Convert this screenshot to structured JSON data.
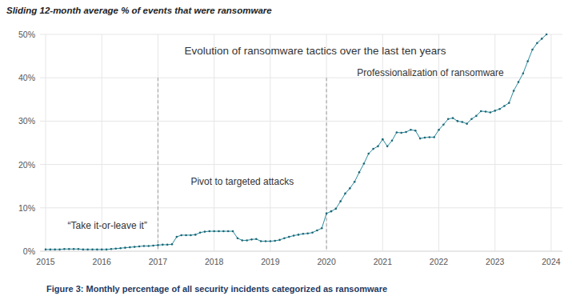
{
  "chart_data": {
    "type": "line",
    "title": "Sliding 12-month average % of events that were ransomware",
    "caption": "Figure 3: Monthly percentage of all security incidents categorized as ransomware",
    "color": "#2b8c9e",
    "marker": "circle",
    "line_style": "solid",
    "grid": true,
    "xlim": [
      2014.9,
      2024.2
    ],
    "xticks": [
      2015,
      2016,
      2017,
      2018,
      2019,
      2020,
      2021,
      2022,
      2023,
      2024
    ],
    "ylim": [
      0,
      50
    ],
    "yticks": [
      {
        "value": 0,
        "label": "0%"
      },
      {
        "value": 10,
        "label": "10%"
      },
      {
        "value": 20,
        "label": "20%"
      },
      {
        "value": 30,
        "label": "30%"
      },
      {
        "value": 40,
        "label": "40%"
      },
      {
        "value": 50,
        "label": "50%"
      }
    ],
    "vlines": [
      {
        "x": 2017,
        "y": 40
      },
      {
        "x": 2020,
        "y": 40
      }
    ],
    "annotations": [
      {
        "text": "Evolution of ransomware tactics over the last ten years",
        "x": 2019.8,
        "y": 45.4
      },
      {
        "text": "“Take it-or-leave it”",
        "x": 2016.1,
        "y": 5.2
      },
      {
        "text": "Pivot to targeted attacks",
        "x": 2018.5,
        "y": 15.3
      },
      {
        "text": "Professionalization of ransomware",
        "x": 2021.85,
        "y": 40.4
      }
    ],
    "x": [
      2015,
      2015.0833,
      2015.1667,
      2015.25,
      2015.3333,
      2015.4167,
      2015.5,
      2015.5833,
      2015.6667,
      2015.75,
      2015.8333,
      2015.9167,
      2016,
      2016.0833,
      2016.1667,
      2016.25,
      2016.3333,
      2016.4167,
      2016.5,
      2016.5833,
      2016.6667,
      2016.75,
      2016.8333,
      2016.9167,
      2017,
      2017.0833,
      2017.1667,
      2017.25,
      2017.3333,
      2017.4167,
      2017.5,
      2017.5833,
      2017.6667,
      2017.75,
      2017.8333,
      2017.9167,
      2018,
      2018.0833,
      2018.1667,
      2018.25,
      2018.3333,
      2018.4167,
      2018.5,
      2018.5833,
      2018.6667,
      2018.75,
      2018.8333,
      2018.9167,
      2019,
      2019.0833,
      2019.1667,
      2019.25,
      2019.3333,
      2019.4167,
      2019.5,
      2019.5833,
      2019.6667,
      2019.75,
      2019.8333,
      2019.9167,
      2020,
      2020.0833,
      2020.1667,
      2020.25,
      2020.3333,
      2020.4167,
      2020.5,
      2020.5833,
      2020.6667,
      2020.75,
      2020.8333,
      2020.9167,
      2021,
      2021.0833,
      2021.1667,
      2021.25,
      2021.3333,
      2021.4167,
      2021.5,
      2021.5833,
      2021.6667,
      2021.75,
      2021.8333,
      2021.9167,
      2022,
      2022.0833,
      2022.1667,
      2022.25,
      2022.3333,
      2022.4167,
      2022.5,
      2022.5833,
      2022.6667,
      2022.75,
      2022.8333,
      2022.9167,
      2023,
      2023.0833,
      2023.1667,
      2023.25,
      2023.3333,
      2023.4167,
      2023.5,
      2023.5833,
      2023.6667,
      2023.75,
      2023.8333,
      2023.9167
    ],
    "values": [
      0.4,
      0.4,
      0.4,
      0.4,
      0.5,
      0.5,
      0.5,
      0.5,
      0.4,
      0.4,
      0.4,
      0.4,
      0.4,
      0.4,
      0.5,
      0.6,
      0.7,
      0.8,
      0.9,
      1.0,
      1.1,
      1.2,
      1.2,
      1.3,
      1.4,
      1.5,
      1.5,
      1.6,
      3.3,
      3.7,
      3.7,
      3.7,
      3.8,
      4.3,
      4.5,
      4.6,
      4.6,
      4.6,
      4.6,
      4.6,
      4.6,
      3.0,
      2.5,
      2.5,
      2.7,
      2.8,
      2.3,
      2.3,
      2.3,
      2.4,
      2.6,
      3.0,
      3.3,
      3.6,
      3.8,
      4.0,
      4.1,
      4.3,
      4.8,
      5.3,
      8.7,
      9.2,
      9.8,
      11.5,
      13.3,
      14.5,
      16.0,
      18.2,
      20.2,
      22.5,
      23.6,
      24.2,
      25.8,
      24.2,
      25.5,
      27.4,
      27.3,
      27.5,
      28.0,
      27.8,
      26.0,
      26.2,
      26.3,
      26.3,
      28.0,
      29.2,
      30.5,
      30.7,
      30.0,
      29.8,
      29.4,
      30.5,
      31.2,
      32.3,
      32.2,
      32.0,
      32.4,
      32.8,
      33.5,
      34.2,
      37.0,
      39.0,
      41.0,
      43.8,
      46.5,
      48.0,
      49.0,
      50.0
    ]
  }
}
